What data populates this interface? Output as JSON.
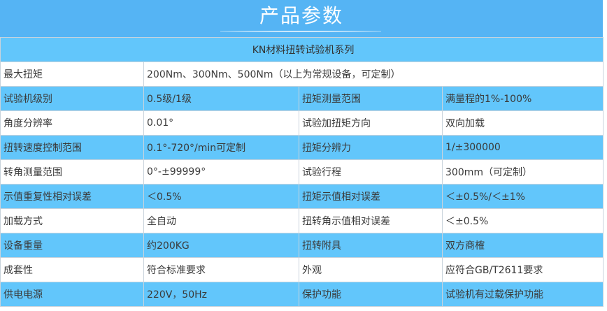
{
  "header": {
    "title": "产品参数"
  },
  "series": "KN材料扭转试验机系列",
  "colors": {
    "header": "#55b4f4",
    "row_blue": "#62c6fb",
    "row_white": "#ffffff"
  },
  "rows": [
    {
      "label": "最大扭矩",
      "value": "200Nm、300Nm、500Nm（以上为常规设备，可定制）"
    },
    {
      "label": "试验机级别",
      "value": "0.5级/1级",
      "label2": "扭矩测量范围",
      "value2": "满量程的1%-100%"
    },
    {
      "label": "角度分辨率",
      "value": "0.01°",
      "label2": "试验加扭矩方向",
      "value2": "双向加载"
    },
    {
      "label": "扭转速度控制范围",
      "value": "0.1°-720°/min可定制",
      "label2": "扭矩分辨力",
      "value2": "1/±300000"
    },
    {
      "label": "转角测量范围",
      "value": "0°-±99999°",
      "label2": "试验行程",
      "value2": "300mm（可定制）"
    },
    {
      "label": "示值重复性相对误差",
      "value": "＜0.5%",
      "label2": "扭矩示值相对误差",
      "value2": "＜±0.5%/＜±1%"
    },
    {
      "label": "加载方式",
      "value": "全自动",
      "label2": "扭转角示值相对误差",
      "value2": "＜±0.5%"
    },
    {
      "label": "设备重量",
      "value": "约200KG",
      "label2": "扭转附具",
      "value2": "双方商榷"
    },
    {
      "label": "成套性",
      "value": "符合标准要求",
      "label2": "外观",
      "value2": "应符合GB/T2611要求"
    },
    {
      "label": "供电电源",
      "value": "220V，50Hz",
      "label2": "保护功能",
      "value2": "试验机有过载保护功能"
    }
  ]
}
